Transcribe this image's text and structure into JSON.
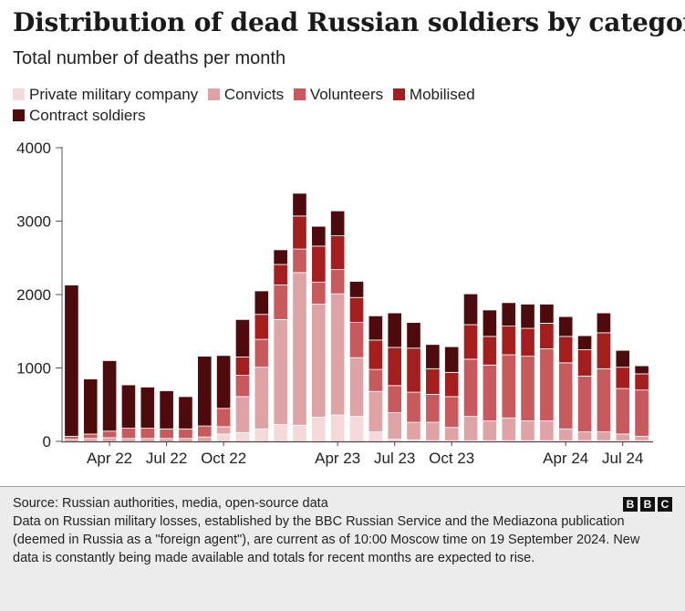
{
  "header": {
    "title": "Distribution of dead Russian soldiers by category",
    "subtitle": "Total number of deaths per month"
  },
  "legend": [
    {
      "label": "Private military company",
      "color": "#f3d9d9"
    },
    {
      "label": "Convicts",
      "color": "#e0a3a5"
    },
    {
      "label": "Volunteers",
      "color": "#c8595c"
    },
    {
      "label": "Mobilised",
      "color": "#a51d1d"
    },
    {
      "label": "Contract soldiers",
      "color": "#4f0b0b"
    }
  ],
  "chart_data": {
    "type": "bar",
    "stacked": true,
    "title": "Distribution of dead Russian soldiers by category",
    "subtitle": "Total number of deaths per month",
    "xlabel": "",
    "ylabel": "",
    "ylim": [
      0,
      4000
    ],
    "yticks": [
      0,
      1000,
      2000,
      3000,
      4000
    ],
    "grid": false,
    "categories": [
      "Feb 22",
      "Mar 22",
      "Apr 22",
      "May 22",
      "Jun 22",
      "Jul 22",
      "Aug 22",
      "Sep 22",
      "Oct 22",
      "Nov 22",
      "Dec 22",
      "Jan 23",
      "Feb 23",
      "Mar 23",
      "Apr 23",
      "May 23",
      "Jun 23",
      "Jul 23",
      "Aug 23",
      "Sep 23",
      "Oct 23",
      "Nov 23",
      "Dec 23",
      "Jan 24",
      "Feb 24",
      "Mar 24",
      "Apr 24",
      "May 24",
      "Jun 24",
      "Jul 24",
      "Aug 24"
    ],
    "x_tick_labels": [
      {
        "index": 2,
        "label": "Apr 22"
      },
      {
        "index": 5,
        "label": "Jul 22"
      },
      {
        "index": 8,
        "label": "Oct 22"
      },
      {
        "index": 14,
        "label": "Apr 23"
      },
      {
        "index": 17,
        "label": "Jul 23"
      },
      {
        "index": 20,
        "label": "Oct 23"
      },
      {
        "index": 26,
        "label": "Apr 24"
      },
      {
        "index": 29,
        "label": "Jul 24"
      }
    ],
    "series": [
      {
        "name": "Private military company",
        "color": "#f3d9d9",
        "values": [
          0,
          0,
          0,
          0,
          0,
          0,
          0,
          0,
          100,
          120,
          170,
          230,
          220,
          330,
          360,
          340,
          130,
          30,
          20,
          10,
          10,
          10,
          10,
          10,
          10,
          10,
          10,
          10,
          10,
          10,
          10
        ]
      },
      {
        "name": "Convicts",
        "color": "#e0a3a5",
        "values": [
          30,
          40,
          50,
          40,
          40,
          40,
          40,
          60,
          100,
          490,
          840,
          1430,
          2080,
          1540,
          1650,
          800,
          550,
          360,
          240,
          250,
          180,
          330,
          270,
          310,
          270,
          270,
          160,
          120,
          120,
          90,
          60
        ]
      },
      {
        "name": "Volunteers",
        "color": "#c8595c",
        "values": [
          40,
          60,
          90,
          140,
          140,
          130,
          130,
          150,
          250,
          290,
          380,
          470,
          320,
          300,
          330,
          480,
          300,
          370,
          410,
          380,
          420,
          780,
          760,
          860,
          880,
          980,
          900,
          760,
          860,
          620,
          630
        ]
      },
      {
        "name": "Mobilised",
        "color": "#a51d1d",
        "values": [
          0,
          0,
          0,
          0,
          0,
          0,
          0,
          0,
          0,
          250,
          340,
          280,
          450,
          490,
          460,
          340,
          400,
          520,
          600,
          350,
          330,
          470,
          390,
          390,
          380,
          350,
          360,
          360,
          490,
          290,
          220
        ]
      },
      {
        "name": "Contract soldiers",
        "color": "#4f0b0b",
        "values": [
          2060,
          750,
          960,
          590,
          560,
          520,
          440,
          950,
          720,
          510,
          320,
          200,
          310,
          270,
          340,
          220,
          330,
          470,
          350,
          330,
          350,
          420,
          360,
          320,
          330,
          260,
          270,
          190,
          270,
          230,
          110
        ]
      }
    ]
  },
  "footer": {
    "source": "Source: Russian authorities, media, open-source data",
    "note": "Data on Russian military losses, established by the BBC Russian Service and the Mediazona publication (deemed in Russia as a \"foreign agent\"), are current as of 10:00 Moscow time on 19 September 2024. New data is constantly being made available and totals for recent months are expected to rise.",
    "logo_letters": [
      "B",
      "B",
      "C"
    ]
  }
}
